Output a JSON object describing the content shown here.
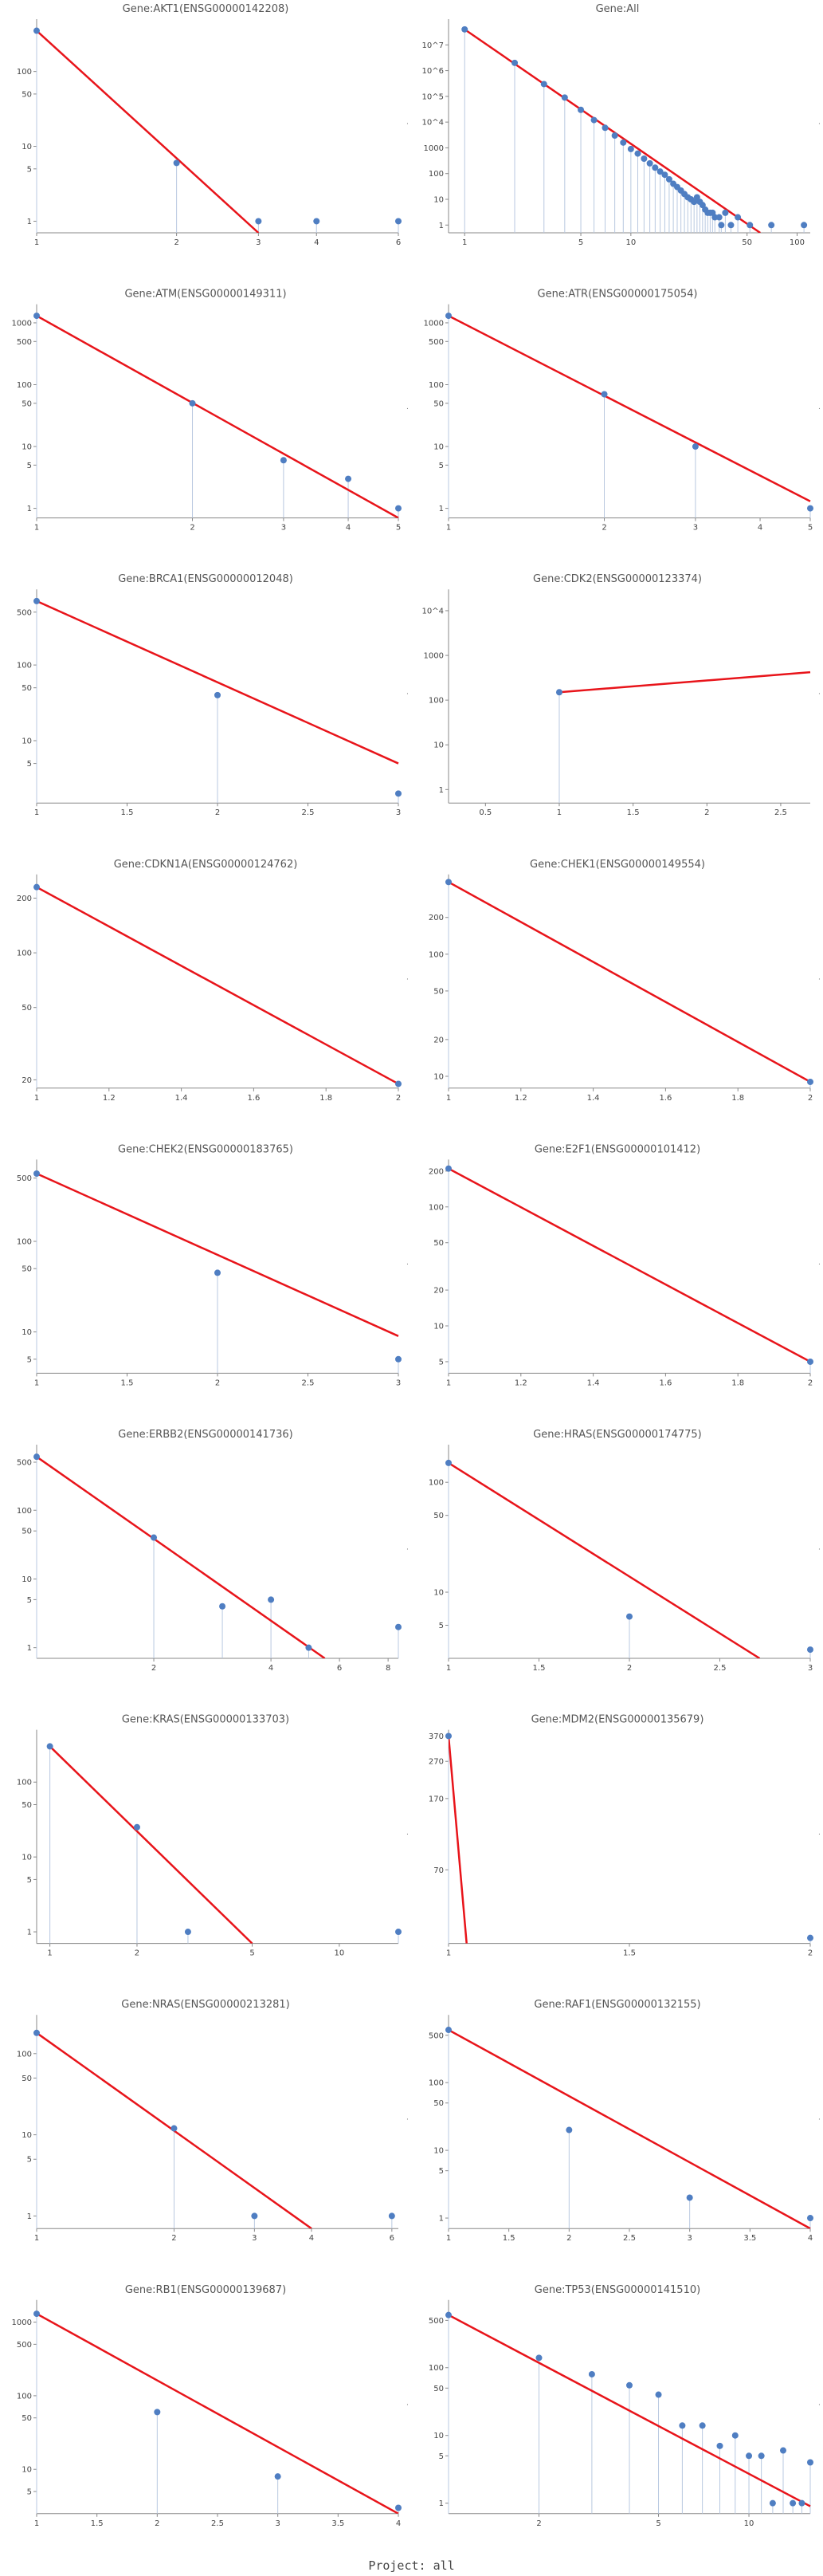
{
  "footer": "Project: all",
  "colors": {
    "points": "#4f7ec2",
    "fit_line": "#e8141a",
    "stems": "#b8c8e0"
  },
  "chart_data": [
    {
      "type": "scatter",
      "title": "Gene:AKT1(ENSG00000142208)",
      "x_scale": "log",
      "y_scale": "log",
      "xlim": [
        1,
        6
      ],
      "ylim": [
        0.7,
        500
      ],
      "x_ticks": [
        1,
        2,
        3,
        4,
        6
      ],
      "y_ticks": [
        1,
        5,
        10,
        50,
        100
      ],
      "points": [
        [
          1,
          350
        ],
        [
          2,
          6
        ],
        [
          3,
          1
        ],
        [
          4,
          1
        ],
        [
          6,
          1
        ]
      ],
      "fit_line": [
        [
          1,
          350
        ],
        [
          3,
          0.7
        ]
      ],
      "grid": false
    },
    {
      "type": "scatter",
      "title": "Gene:All",
      "x_scale": "log",
      "y_scale": "log",
      "xlim": [
        0.8,
        120
      ],
      "ylim": [
        0.5,
        100000000
      ],
      "x_ticks": [
        1,
        5,
        10,
        50,
        100
      ],
      "y_ticks": [
        1,
        10,
        100,
        1000,
        10000,
        100000,
        1000000,
        10000000
      ],
      "y_tick_labels": [
        "1",
        "10",
        "100",
        "1000",
        "10^4",
        "10^5",
        "10^6",
        "10^7"
      ],
      "points": [
        [
          1,
          40000000
        ],
        [
          2,
          2000000
        ],
        [
          3,
          300000
        ],
        [
          4,
          90000
        ],
        [
          5,
          30000
        ],
        [
          6,
          12000
        ],
        [
          7,
          6000
        ],
        [
          8,
          3000
        ],
        [
          9,
          1600
        ],
        [
          10,
          900
        ],
        [
          11,
          600
        ],
        [
          12,
          380
        ],
        [
          13,
          250
        ],
        [
          14,
          170
        ],
        [
          15,
          120
        ],
        [
          16,
          90
        ],
        [
          17,
          60
        ],
        [
          18,
          40
        ],
        [
          19,
          30
        ],
        [
          20,
          22
        ],
        [
          21,
          16
        ],
        [
          22,
          12
        ],
        [
          23,
          10
        ],
        [
          24,
          8
        ],
        [
          25,
          12
        ],
        [
          26,
          8
        ],
        [
          27,
          6
        ],
        [
          28,
          4
        ],
        [
          29,
          3
        ],
        [
          30,
          3
        ],
        [
          31,
          3
        ],
        [
          32,
          2
        ],
        [
          34,
          2
        ],
        [
          35,
          1
        ],
        [
          37,
          3
        ],
        [
          40,
          1
        ],
        [
          44,
          2
        ],
        [
          52,
          1
        ],
        [
          70,
          1
        ],
        [
          110,
          1
        ]
      ],
      "fit_line": [
        [
          1,
          40000000
        ],
        [
          60,
          0.5
        ]
      ],
      "grid": false
    },
    {
      "type": "scatter",
      "title": "Gene:ATM(ENSG00000149311)",
      "x_scale": "log",
      "y_scale": "log",
      "xlim": [
        1,
        5
      ],
      "ylim": [
        0.7,
        2000
      ],
      "x_ticks": [
        1,
        2,
        3,
        4,
        5
      ],
      "y_ticks": [
        1,
        5,
        10,
        50,
        100,
        500,
        1000
      ],
      "points": [
        [
          1,
          1300
        ],
        [
          2,
          50
        ],
        [
          3,
          6
        ],
        [
          4,
          3
        ],
        [
          5,
          1
        ]
      ],
      "fit_line": [
        [
          1,
          1300
        ],
        [
          5,
          0.7
        ]
      ],
      "grid": false
    },
    {
      "type": "scatter",
      "title": "Gene:ATR(ENSG00000175054)",
      "x_scale": "log",
      "y_scale": "log",
      "xlim": [
        1,
        5
      ],
      "ylim": [
        0.7,
        2000
      ],
      "x_ticks": [
        1,
        2,
        3,
        4,
        5
      ],
      "y_ticks": [
        1,
        5,
        10,
        50,
        100,
        500,
        1000
      ],
      "points": [
        [
          1,
          1300
        ],
        [
          2,
          70
        ],
        [
          3,
          10
        ],
        [
          5,
          1
        ]
      ],
      "fit_line": [
        [
          1,
          1300
        ],
        [
          5,
          1.3
        ]
      ],
      "grid": false
    },
    {
      "type": "scatter",
      "title": "Gene:BRCA1(ENSG00000012048)",
      "x_scale": "linear",
      "y_scale": "log",
      "xlim": [
        1,
        3
      ],
      "ylim": [
        1.5,
        1000
      ],
      "x_ticks": [
        1,
        1.5,
        2,
        2.5,
        3
      ],
      "y_ticks": [
        5,
        10,
        50,
        100,
        500
      ],
      "points": [
        [
          1,
          700
        ],
        [
          2,
          40
        ],
        [
          3,
          2
        ]
      ],
      "fit_line": [
        [
          1,
          700
        ],
        [
          3,
          5
        ]
      ],
      "grid": false
    },
    {
      "type": "scatter",
      "title": "Gene:CDK2(ENSG00000123374)",
      "x_scale": "linear",
      "y_scale": "log",
      "xlim": [
        0.25,
        2.7
      ],
      "ylim": [
        0.5,
        30000
      ],
      "x_ticks": [
        0.5,
        1,
        1.5,
        2,
        2.5
      ],
      "y_ticks": [
        1,
        10,
        100,
        1000,
        10000
      ],
      "y_tick_labels": [
        "1",
        "10",
        "100",
        "1000",
        "10^4"
      ],
      "points": [
        [
          1,
          150
        ]
      ],
      "fit_line": [
        [
          1,
          150
        ],
        [
          2.7,
          420
        ]
      ],
      "grid": false
    },
    {
      "type": "scatter",
      "title": "Gene:CDKN1A(ENSG00000124762)",
      "x_scale": "linear",
      "y_scale": "log",
      "xlim": [
        1,
        2
      ],
      "ylim": [
        18,
        270
      ],
      "x_ticks": [
        1,
        1.2,
        1.4,
        1.6,
        1.8,
        2
      ],
      "y_ticks": [
        20,
        50,
        100,
        200
      ],
      "points": [
        [
          1,
          230
        ],
        [
          2,
          19
        ]
      ],
      "fit_line": [
        [
          1,
          230
        ],
        [
          2,
          19
        ]
      ],
      "grid": false
    },
    {
      "type": "scatter",
      "title": "Gene:CHEK1(ENSG00000149554)",
      "x_scale": "linear",
      "y_scale": "log",
      "xlim": [
        1,
        2
      ],
      "ylim": [
        8,
        450
      ],
      "x_ticks": [
        1,
        1.2,
        1.4,
        1.6,
        1.8,
        2
      ],
      "y_ticks": [
        10,
        20,
        50,
        100,
        200
      ],
      "points": [
        [
          1,
          390
        ],
        [
          2,
          9
        ]
      ],
      "fit_line": [
        [
          1,
          390
        ],
        [
          2,
          9
        ]
      ],
      "grid": false
    },
    {
      "type": "scatter",
      "title": "Gene:CHEK2(ENSG00000183765)",
      "x_scale": "linear",
      "y_scale": "log",
      "xlim": [
        1,
        3
      ],
      "ylim": [
        3.5,
        800
      ],
      "x_ticks": [
        1,
        1.5,
        2,
        2.5,
        3
      ],
      "y_ticks": [
        5,
        10,
        50,
        100,
        500
      ],
      "points": [
        [
          1,
          560
        ],
        [
          2,
          45
        ],
        [
          3,
          5
        ]
      ],
      "fit_line": [
        [
          1,
          560
        ],
        [
          3,
          9
        ]
      ],
      "grid": false
    },
    {
      "type": "scatter",
      "title": "Gene:E2F1(ENSG00000101412)",
      "x_scale": "linear",
      "y_scale": "log",
      "xlim": [
        1,
        2
      ],
      "ylim": [
        4,
        250
      ],
      "x_ticks": [
        1,
        1.2,
        1.4,
        1.6,
        1.8,
        2
      ],
      "y_ticks": [
        5,
        10,
        20,
        50,
        100,
        200
      ],
      "points": [
        [
          1,
          210
        ],
        [
          2,
          5
        ]
      ],
      "fit_line": [
        [
          1,
          210
        ],
        [
          2,
          5
        ]
      ],
      "grid": false
    },
    {
      "type": "scatter",
      "title": "Gene:ERBB2(ENSG00000141736)",
      "x_scale": "log",
      "y_scale": "log",
      "xlim": [
        1,
        8.5
      ],
      "ylim": [
        0.7,
        900
      ],
      "x_ticks": [
        2,
        4,
        6,
        8
      ],
      "y_ticks": [
        1,
        5,
        10,
        50,
        100,
        500
      ],
      "points": [
        [
          1,
          600
        ],
        [
          2,
          40
        ],
        [
          3,
          4
        ],
        [
          4,
          5
        ],
        [
          5,
          1
        ],
        [
          8.5,
          2
        ]
      ],
      "fit_line": [
        [
          1,
          600
        ],
        [
          5.5,
          0.7
        ]
      ],
      "grid": false
    },
    {
      "type": "scatter",
      "title": "Gene:HRAS(ENSG00000174775)",
      "x_scale": "linear",
      "y_scale": "log",
      "xlim": [
        1,
        3
      ],
      "ylim": [
        2.5,
        220
      ],
      "x_ticks": [
        1,
        1.5,
        2,
        2.5,
        3
      ],
      "y_ticks": [
        5,
        10,
        50,
        100
      ],
      "points": [
        [
          1,
          150
        ],
        [
          2,
          6
        ],
        [
          3,
          3
        ]
      ],
      "fit_line": [
        [
          1,
          150
        ],
        [
          2.72,
          2.5
        ]
      ],
      "grid": false
    },
    {
      "type": "scatter",
      "title": "Gene:KRAS(ENSG00000133703)",
      "x_scale": "log",
      "y_scale": "log",
      "xlim": [
        0.9,
        16
      ],
      "ylim": [
        0.7,
        500
      ],
      "x_ticks": [
        1,
        2,
        5,
        10
      ],
      "y_ticks": [
        1,
        5,
        10,
        50,
        100
      ],
      "points": [
        [
          1,
          300
        ],
        [
          2,
          25
        ],
        [
          3,
          1
        ],
        [
          16,
          1
        ]
      ],
      "fit_line": [
        [
          1,
          300
        ],
        [
          5,
          0.7
        ]
      ],
      "grid": false
    },
    {
      "type": "scatter",
      "title": "Gene:MDM2(ENSG00000135679)",
      "x_scale": "linear",
      "y_scale": "log",
      "xlim": [
        1,
        2
      ],
      "ylim": [
        28,
        400
      ],
      "x_ticks": [
        1,
        1.5,
        2
      ],
      "y_ticks": [
        70,
        170,
        270,
        370
      ],
      "points": [
        [
          1,
          370
        ],
        [
          2,
          30
        ]
      ],
      "fit_line": [
        [
          1,
          370
        ],
        [
          1.05,
          28
        ]
      ],
      "grid": false
    },
    {
      "type": "scatter",
      "title": "Gene:NRAS(ENSG00000213281)",
      "x_scale": "log",
      "y_scale": "log",
      "xlim": [
        1,
        6.2
      ],
      "ylim": [
        0.7,
        300
      ],
      "x_ticks": [
        1,
        2,
        3,
        4,
        6
      ],
      "y_ticks": [
        1,
        5,
        10,
        50,
        100
      ],
      "points": [
        [
          1,
          180
        ],
        [
          2,
          12
        ],
        [
          3,
          1
        ],
        [
          6,
          1
        ]
      ],
      "fit_line": [
        [
          1,
          180
        ],
        [
          4,
          0.7
        ]
      ],
      "grid": false
    },
    {
      "type": "scatter",
      "title": "Gene:RAF1(ENSG00000132155)",
      "x_scale": "linear",
      "y_scale": "log",
      "xlim": [
        1,
        4
      ],
      "ylim": [
        0.7,
        1000
      ],
      "x_ticks": [
        1,
        1.5,
        2,
        2.5,
        3,
        3.5,
        4
      ],
      "y_ticks": [
        1,
        5,
        10,
        50,
        100,
        500
      ],
      "points": [
        [
          1,
          600
        ],
        [
          2,
          20
        ],
        [
          3,
          2
        ],
        [
          4,
          1
        ]
      ],
      "fit_line": [
        [
          1,
          600
        ],
        [
          4,
          0.7
        ]
      ],
      "grid": false
    },
    {
      "type": "scatter",
      "title": "Gene:RB1(ENSG00000139687)",
      "x_scale": "linear",
      "y_scale": "log",
      "xlim": [
        1,
        4
      ],
      "ylim": [
        2.5,
        2000
      ],
      "x_ticks": [
        1,
        1.5,
        2,
        2.5,
        3,
        3.5,
        4
      ],
      "y_ticks": [
        5,
        10,
        50,
        100,
        500,
        1000
      ],
      "points": [
        [
          1,
          1300
        ],
        [
          2,
          60
        ],
        [
          3,
          8
        ],
        [
          4,
          3
        ]
      ],
      "fit_line": [
        [
          1,
          1300
        ],
        [
          4,
          2.5
        ]
      ],
      "grid": false
    },
    {
      "type": "scatter",
      "title": "Gene:TP53(ENSG00000141510)",
      "x_scale": "log",
      "y_scale": "log",
      "xlim": [
        1,
        16
      ],
      "ylim": [
        0.7,
        1000
      ],
      "x_ticks": [
        2,
        5,
        10
      ],
      "y_ticks": [
        1,
        5,
        10,
        50,
        100,
        500
      ],
      "points": [
        [
          1,
          600
        ],
        [
          2,
          140
        ],
        [
          3,
          80
        ],
        [
          4,
          55
        ],
        [
          5,
          40
        ],
        [
          6,
          14
        ],
        [
          7,
          14
        ],
        [
          8,
          7
        ],
        [
          9,
          10
        ],
        [
          10,
          5
        ],
        [
          11,
          5
        ],
        [
          12,
          1
        ],
        [
          13,
          6
        ],
        [
          14,
          1
        ],
        [
          15,
          1
        ],
        [
          16,
          4
        ]
      ],
      "fit_line": [
        [
          1,
          600
        ],
        [
          16,
          0.9
        ]
      ],
      "grid": false
    }
  ]
}
